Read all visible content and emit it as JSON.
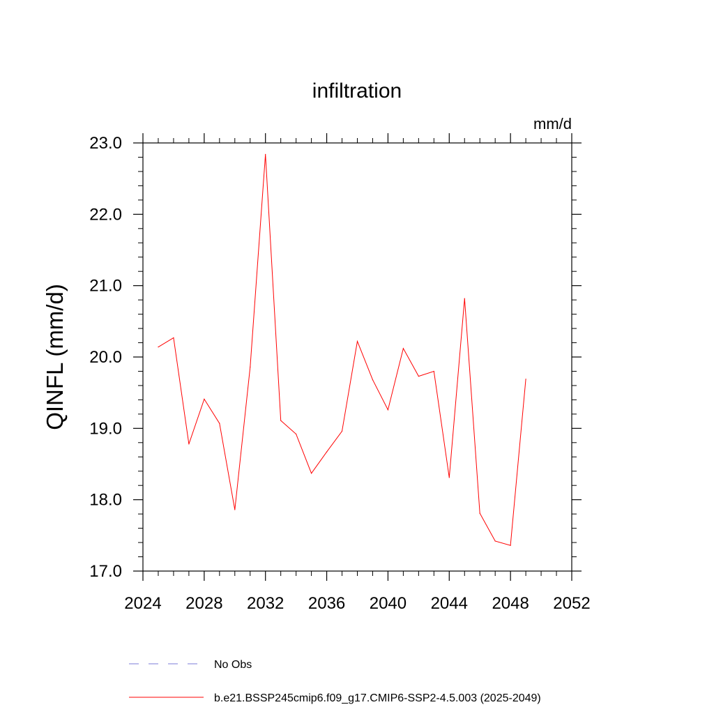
{
  "chart_data": {
    "type": "line",
    "title": "infiltration",
    "units_label": "mm/d",
    "ylabel": "QINFL  (mm/d)",
    "xlabel": "",
    "xlim": [
      2024,
      2052
    ],
    "ylim": [
      17.0,
      23.0
    ],
    "x_ticks": [
      2024,
      2028,
      2032,
      2036,
      2040,
      2044,
      2048,
      2052
    ],
    "x_tick_labels": [
      "2024",
      "2028",
      "2032",
      "2036",
      "2040",
      "2044",
      "2048",
      "2052"
    ],
    "y_ticks": [
      17.0,
      18.0,
      19.0,
      20.0,
      21.0,
      22.0,
      23.0
    ],
    "y_tick_labels": [
      "17.0",
      "18.0",
      "19.0",
      "20.0",
      "21.0",
      "22.0",
      "23.0"
    ],
    "series": [
      {
        "name": "b.e21.BSSP245cmip6.f09_g17.CMIP6-SSP2-4.5.003 (2025-2049)",
        "color": "#ff0000",
        "style": "solid",
        "x": [
          2025,
          2026,
          2027,
          2028,
          2029,
          2030,
          2031,
          2032,
          2033,
          2034,
          2035,
          2036,
          2037,
          2038,
          2039,
          2040,
          2041,
          2042,
          2043,
          2044,
          2045,
          2046,
          2047,
          2048,
          2049
        ],
        "values": [
          20.14,
          20.27,
          18.78,
          19.41,
          19.07,
          17.86,
          19.86,
          22.84,
          19.11,
          18.92,
          18.37,
          18.67,
          18.96,
          20.22,
          19.68,
          19.26,
          20.12,
          19.73,
          19.8,
          18.31,
          20.82,
          17.81,
          17.42,
          17.36,
          19.69
        ]
      }
    ],
    "legend": [
      {
        "label": "No Obs",
        "color": "#7b7bd9",
        "style": "dashed"
      },
      {
        "label": "b.e21.BSSP245cmip6.f09_g17.CMIP6-SSP2-4.5.003 (2025-2049)",
        "color": "#ff0000",
        "style": "solid"
      }
    ],
    "legend_position": "bottom"
  }
}
